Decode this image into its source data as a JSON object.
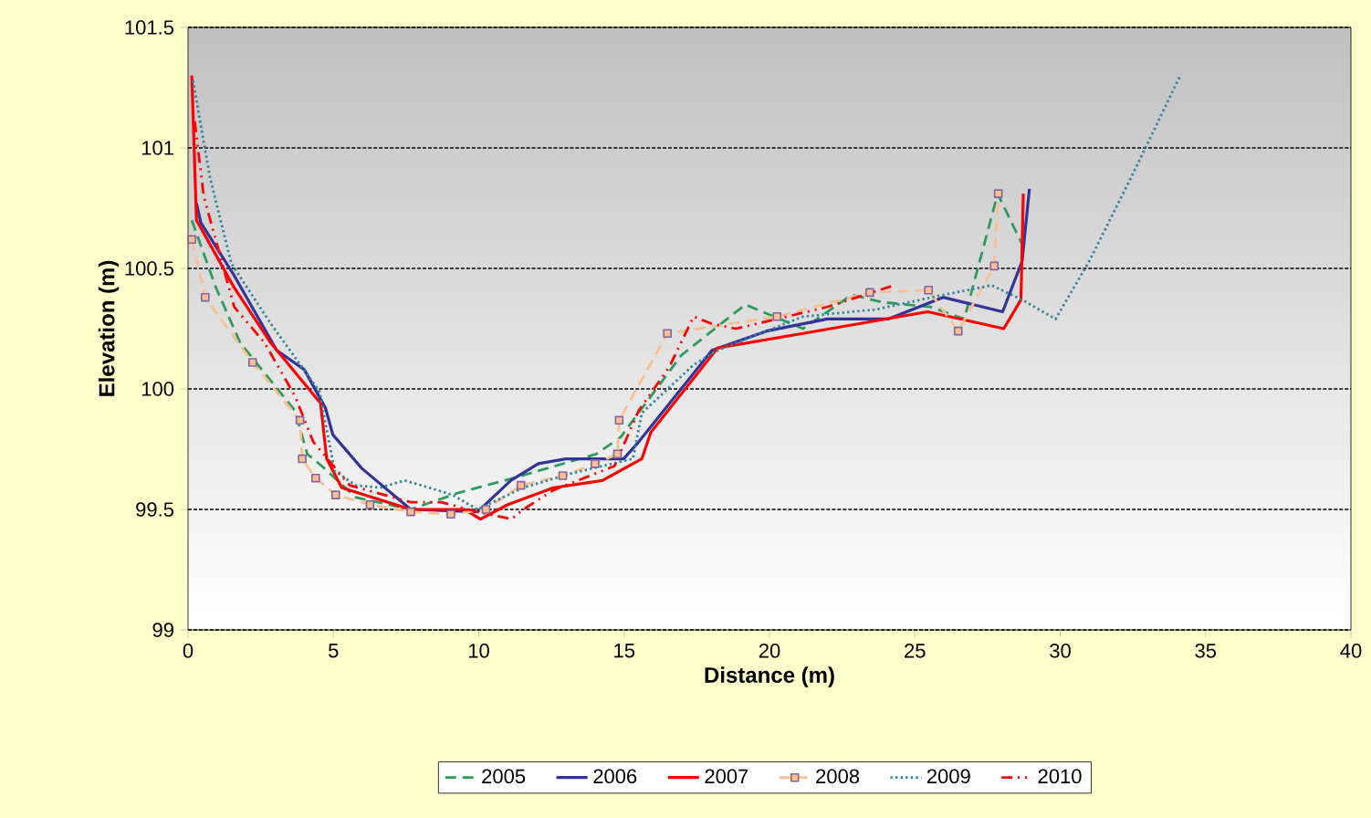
{
  "chart_data": {
    "type": "line",
    "xlabel": "Distance (m)",
    "ylabel": "Elevation (m)",
    "xlim": [
      0,
      40
    ],
    "xticks": [
      0,
      5,
      10,
      15,
      20,
      25,
      30,
      35,
      40
    ],
    "ylim": [
      99,
      101.5
    ],
    "yticks": [
      99,
      99.5,
      100,
      100.5,
      101,
      101.5
    ],
    "grid": "y",
    "legend": "bottom",
    "series": [
      {
        "name": "2005",
        "color": "#2e9b5e",
        "line_style": "dashed",
        "x": [
          0.13,
          0.96,
          1.8,
          3.68,
          4.1,
          4.6,
          5.77,
          7.66,
          9.33,
          11.2,
          14.04,
          14.88,
          16.97,
          19.17,
          21.15,
          22.83,
          23.87,
          25.55,
          26.7,
          27.85,
          28.69
        ],
        "values": [
          100.7,
          100.42,
          100.19,
          99.91,
          99.73,
          99.68,
          99.55,
          99.5,
          99.57,
          99.63,
          99.73,
          99.8,
          100.14,
          100.35,
          100.25,
          100.39,
          100.36,
          100.34,
          100.29,
          100.81,
          100.6
        ]
      },
      {
        "name": "2006",
        "color": "#333399",
        "line_style": "solid",
        "x": [
          0.29,
          0.44,
          1.59,
          3.05,
          4.0,
          4.73,
          4.98,
          5.98,
          7.66,
          9.96,
          11.1,
          12.05,
          13.0,
          14.98,
          15.5,
          18.02,
          19.9,
          21.99,
          24.08,
          25.97,
          28.02,
          28.69,
          28.94
        ],
        "values": [
          100.77,
          100.69,
          100.47,
          100.16,
          100.08,
          99.92,
          99.81,
          99.67,
          99.5,
          99.49,
          99.62,
          99.69,
          99.71,
          99.71,
          99.78,
          100.16,
          100.24,
          100.29,
          100.29,
          100.38,
          100.32,
          100.53,
          100.83
        ]
      },
      {
        "name": "2007",
        "color": "#ff0000",
        "line_style": "solid",
        "x": [
          0.13,
          0.29,
          1.59,
          2.85,
          4.56,
          4.77,
          5.29,
          7.66,
          9.5,
          10.06,
          11.0,
          12.57,
          14.25,
          15.61,
          15.92,
          18.22,
          21.15,
          25.44,
          28.06,
          28.65,
          28.73
        ],
        "values": [
          101.3,
          100.7,
          100.42,
          100.19,
          99.94,
          99.71,
          99.59,
          99.5,
          99.5,
          99.46,
          99.52,
          99.59,
          99.62,
          99.71,
          99.82,
          100.17,
          100.23,
          100.32,
          100.25,
          100.37,
          100.81
        ]
      },
      {
        "name": "2008",
        "color": "#fac090",
        "line_style": "dashed",
        "marker": "square",
        "x": [
          0.13,
          0.59,
          2.22,
          3.85,
          3.93,
          4.39,
          5.08,
          6.26,
          7.66,
          9.04,
          10.25,
          11.45,
          12.89,
          14.0,
          14.77,
          14.83,
          16.49,
          20.26,
          23.45,
          25.47,
          26.49,
          27.73,
          27.87
        ],
        "values": [
          100.62,
          100.38,
          100.11,
          99.87,
          99.71,
          99.63,
          99.56,
          99.52,
          99.49,
          99.48,
          99.5,
          99.6,
          99.64,
          99.69,
          99.73,
          99.87,
          100.23,
          100.3,
          100.4,
          100.41,
          100.24,
          100.51,
          100.81
        ]
      },
      {
        "name": "2009",
        "color": "#31859c",
        "line_style": "dotted",
        "x": [
          0.17,
          0.75,
          1.49,
          2.85,
          4.52,
          5.04,
          5.77,
          6.6,
          7.45,
          8.3,
          9.1,
          9.96,
          11.53,
          13.2,
          15.3,
          15.61,
          17.39,
          18.22,
          21.15,
          23.67,
          25.97,
          27.64,
          28.69,
          29.84,
          31.0,
          32.45,
          34.13
        ],
        "values": [
          101.28,
          100.88,
          100.52,
          100.27,
          99.99,
          99.66,
          99.6,
          99.59,
          99.62,
          99.59,
          99.56,
          99.5,
          99.59,
          99.65,
          99.71,
          99.9,
          100.1,
          100.16,
          100.3,
          100.33,
          100.39,
          100.43,
          100.37,
          100.29,
          100.53,
          100.88,
          101.3
        ]
      },
      {
        "name": "2010",
        "color": "#ff0000",
        "line_style": "dashdot",
        "x": [
          0.23,
          0.54,
          1.59,
          2.64,
          3.68,
          4.31,
          5.56,
          7.66,
          8.7,
          9.96,
          11.12,
          11.53,
          12.57,
          14.67,
          15.5,
          16.55,
          17.39,
          18.02,
          18.85,
          21.99,
          24.29
        ],
        "values": [
          101.11,
          100.8,
          100.34,
          100.19,
          99.97,
          99.78,
          99.6,
          99.53,
          99.53,
          99.49,
          99.46,
          99.5,
          99.58,
          99.68,
          99.91,
          100.09,
          100.3,
          100.27,
          100.25,
          100.34,
          100.43
        ]
      }
    ]
  }
}
